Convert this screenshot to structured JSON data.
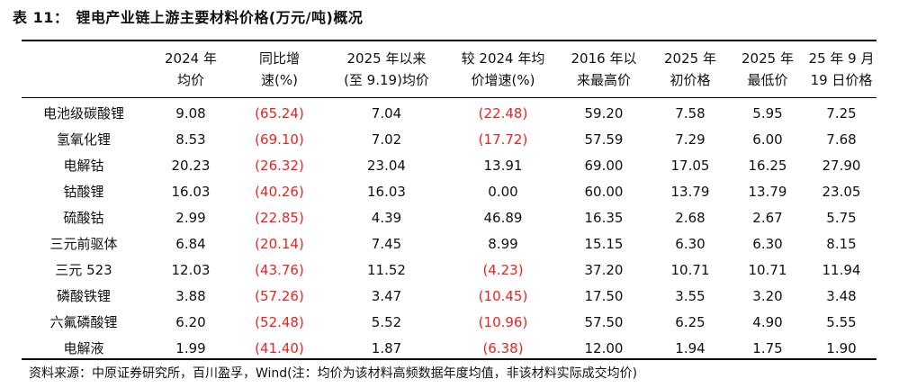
{
  "title": {
    "label": "表 11：",
    "text": "锂电产业链上游主要材料价格(万元/吨)概况"
  },
  "table": {
    "headers": [
      {
        "line1": "",
        "line2": ""
      },
      {
        "line1": "2024 年",
        "line2": "均价"
      },
      {
        "line1": "同比增",
        "line2": "速(%)"
      },
      {
        "line1": "2025 年以来",
        "line2": "(至 9.19)均价"
      },
      {
        "line1": "较 2024 年均",
        "line2": "价增速(%)"
      },
      {
        "line1": "2016 年以",
        "line2": "来最高价"
      },
      {
        "line1": "2025 年",
        "line2": "初价格"
      },
      {
        "line1": "2025 年",
        "line2": "最低价"
      },
      {
        "line1": "25 年 9 月",
        "line2": "19 日价格"
      }
    ],
    "rows": [
      {
        "cells": [
          "电池级碳酸锂",
          "9.08",
          "(65.24)",
          "7.04",
          "(22.48)",
          "59.20",
          "7.58",
          "5.95",
          "7.25"
        ],
        "neg": [
          false,
          false,
          true,
          false,
          true,
          false,
          false,
          false,
          false
        ]
      },
      {
        "cells": [
          "氢氧化锂",
          "8.53",
          "(69.10)",
          "7.02",
          "(17.72)",
          "57.59",
          "7.29",
          "6.00",
          "7.68"
        ],
        "neg": [
          false,
          false,
          true,
          false,
          true,
          false,
          false,
          false,
          false
        ]
      },
      {
        "cells": [
          "电解钴",
          "20.23",
          "(26.32)",
          "23.04",
          "13.91",
          "69.00",
          "17.05",
          "16.25",
          "27.90"
        ],
        "neg": [
          false,
          false,
          true,
          false,
          false,
          false,
          false,
          false,
          false
        ]
      },
      {
        "cells": [
          "钴酸锂",
          "16.03",
          "(40.26)",
          "16.03",
          "0.00",
          "60.00",
          "13.79",
          "13.79",
          "23.05"
        ],
        "neg": [
          false,
          false,
          true,
          false,
          false,
          false,
          false,
          false,
          false
        ]
      },
      {
        "cells": [
          "硫酸钴",
          "2.99",
          "(22.85)",
          "4.39",
          "46.89",
          "16.35",
          "2.68",
          "2.67",
          "5.75"
        ],
        "neg": [
          false,
          false,
          true,
          false,
          false,
          false,
          false,
          false,
          false
        ]
      },
      {
        "cells": [
          "三元前驱体",
          "6.84",
          "(20.14)",
          "7.45",
          "8.99",
          "15.15",
          "6.30",
          "6.30",
          "8.15"
        ],
        "neg": [
          false,
          false,
          true,
          false,
          false,
          false,
          false,
          false,
          false
        ]
      },
      {
        "cells": [
          "三元 523",
          "12.03",
          "(43.76)",
          "11.52",
          "(4.23)",
          "37.20",
          "10.71",
          "10.71",
          "11.94"
        ],
        "neg": [
          false,
          false,
          true,
          false,
          true,
          false,
          false,
          false,
          false
        ]
      },
      {
        "cells": [
          "磷酸铁锂",
          "3.88",
          "(57.26)",
          "3.47",
          "(10.45)",
          "17.50",
          "3.55",
          "3.20",
          "3.48"
        ],
        "neg": [
          false,
          false,
          true,
          false,
          true,
          false,
          false,
          false,
          false
        ]
      },
      {
        "cells": [
          "六氟磷酸锂",
          "6.20",
          "(52.48)",
          "5.52",
          "(10.96)",
          "57.50",
          "6.25",
          "4.90",
          "5.55"
        ],
        "neg": [
          false,
          false,
          true,
          false,
          true,
          false,
          false,
          false,
          false
        ]
      },
      {
        "cells": [
          "电解液",
          "1.99",
          "(41.40)",
          "1.87",
          "(6.38)",
          "12.00",
          "1.94",
          "1.75",
          "1.90"
        ],
        "neg": [
          false,
          false,
          true,
          false,
          true,
          false,
          false,
          false,
          false
        ]
      }
    ]
  },
  "source": "资料来源：中原证券研究所，百川盈孚，Wind(注：均价为该材料高频数据年度均值，非该材料实际成交均价)",
  "colors": {
    "negative": "#e8251f",
    "text": "#111111",
    "rule": "#000000"
  }
}
